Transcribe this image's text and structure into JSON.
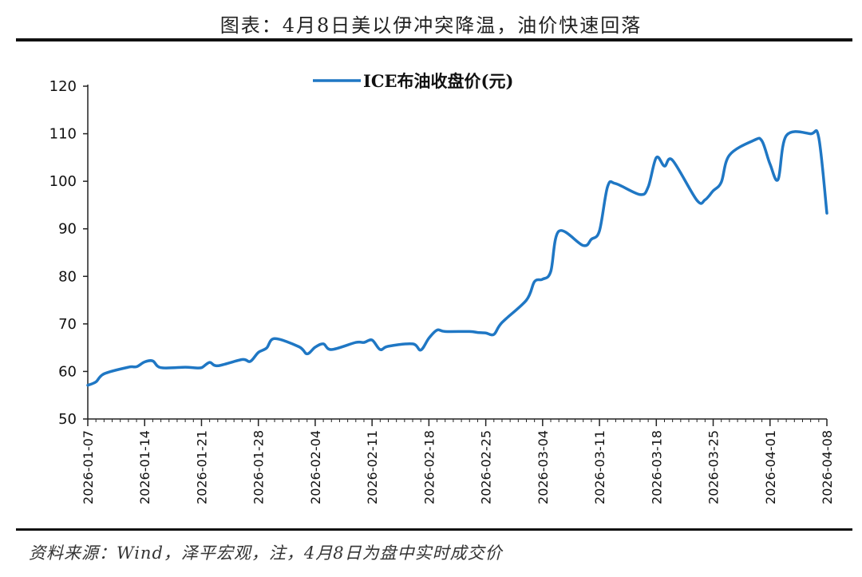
{
  "title": "图表：4月8日美以伊冲突降温，油价快速回落",
  "source": "资料来源：Wind，泽平宏观，注，4月8日为盘中实时成交价",
  "colors": {
    "line": "#1f77c4",
    "axis": "#222222"
  },
  "chart_data": {
    "type": "line",
    "series": [
      {
        "name": "ICE布油收盘价(元)",
        "values": [
          [
            "2026-01-07",
            57.1
          ],
          [
            "2026-01-08",
            57.8
          ],
          [
            "2026-01-09",
            59.5
          ],
          [
            "2026-01-12",
            60.9
          ],
          [
            "2026-01-13",
            61.0
          ],
          [
            "2026-01-14",
            62.0
          ],
          [
            "2026-01-15",
            62.2
          ],
          [
            "2026-01-16",
            60.8
          ],
          [
            "2026-01-19",
            60.9
          ],
          [
            "2026-01-20",
            60.8
          ],
          [
            "2026-01-21",
            60.8
          ],
          [
            "2026-01-22",
            61.9
          ],
          [
            "2026-01-23",
            61.2
          ],
          [
            "2026-01-26",
            62.5
          ],
          [
            "2026-01-27",
            62.1
          ],
          [
            "2026-01-28",
            64.0
          ],
          [
            "2026-01-29",
            64.9
          ],
          [
            "2026-01-30",
            66.9
          ],
          [
            "2026-02-02",
            65.2
          ],
          [
            "2026-02-03",
            63.7
          ],
          [
            "2026-02-04",
            65.1
          ],
          [
            "2026-02-05",
            65.8
          ],
          [
            "2026-02-06",
            64.6
          ],
          [
            "2026-02-09",
            66.1
          ],
          [
            "2026-02-10",
            66.1
          ],
          [
            "2026-02-11",
            66.6
          ],
          [
            "2026-02-12",
            64.6
          ],
          [
            "2026-02-13",
            65.3
          ],
          [
            "2026-02-16",
            65.8
          ],
          [
            "2026-02-17",
            64.5
          ],
          [
            "2026-02-18",
            67.0
          ],
          [
            "2026-02-19",
            68.7
          ],
          [
            "2026-02-20",
            68.4
          ],
          [
            "2026-02-23",
            68.4
          ],
          [
            "2026-02-24",
            68.2
          ],
          [
            "2026-02-25",
            68.1
          ],
          [
            "2026-02-26",
            67.8
          ],
          [
            "2026-02-27",
            70.3
          ],
          [
            "2026-03-02",
            75.0
          ],
          [
            "2026-03-03",
            78.9
          ],
          [
            "2026-03-04",
            79.4
          ],
          [
            "2026-03-05",
            81.0
          ],
          [
            "2026-03-06",
            89.5
          ],
          [
            "2026-03-09",
            86.5
          ],
          [
            "2026-03-10",
            87.8
          ],
          [
            "2026-03-11",
            89.6
          ],
          [
            "2026-03-12",
            98.9
          ],
          [
            "2026-03-13",
            99.5
          ],
          [
            "2026-03-16",
            97.2
          ],
          [
            "2026-03-17",
            98.8
          ],
          [
            "2026-03-18",
            105.0
          ],
          [
            "2026-03-19",
            103.2
          ],
          [
            "2026-03-20",
            104.4
          ],
          [
            "2026-03-23",
            96.0
          ],
          [
            "2026-03-24",
            96.1
          ],
          [
            "2026-03-25",
            98.0
          ],
          [
            "2026-03-26",
            99.8
          ],
          [
            "2026-03-27",
            105.5
          ],
          [
            "2026-03-30",
            108.6
          ],
          [
            "2026-03-31",
            108.5
          ],
          [
            "2026-04-01",
            103.6
          ],
          [
            "2026-04-02",
            100.4
          ],
          [
            "2026-04-03",
            109.6
          ],
          [
            "2026-04-06",
            110.0
          ],
          [
            "2026-04-07",
            109.2
          ],
          [
            "2026-04-08",
            93.3
          ]
        ]
      }
    ],
    "x_ticks": [
      "2026-01-07",
      "2026-01-14",
      "2026-01-21",
      "2026-01-28",
      "2026-02-04",
      "2026-02-11",
      "2026-02-18",
      "2026-02-25",
      "2026-03-04",
      "2026-03-11",
      "2026-03-18",
      "2026-03-25",
      "2026-04-01",
      "2026-04-08"
    ],
    "y_ticks": [
      50,
      60,
      70,
      80,
      90,
      100,
      110,
      120
    ],
    "ylim": [
      50,
      120
    ],
    "xlim": [
      "2026-01-07",
      "2026-04-08"
    ],
    "legend_position": "top-center",
    "grid": false
  }
}
